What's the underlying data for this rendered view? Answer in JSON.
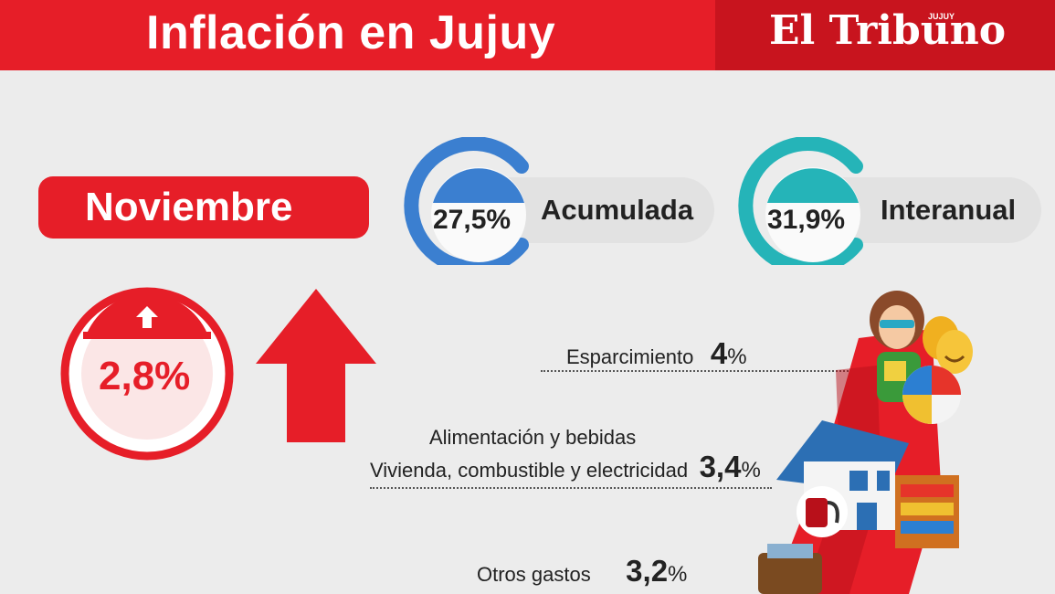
{
  "header": {
    "title": "Inflación en Jujuy",
    "brand": "El Tribuno",
    "brand_sub": "JUJUY"
  },
  "month": "Noviembre",
  "accumulated": {
    "value": "27,5%",
    "label": "Acumulada",
    "color": "#3b7fd0"
  },
  "interannual": {
    "value": "31,9%",
    "label": "Interanual",
    "color": "#25b4b8"
  },
  "monthly": {
    "value": "2,8%",
    "color": "#e61e28"
  },
  "categories": [
    {
      "name": "Esparcimiento",
      "value": "4",
      "unit": "%"
    },
    {
      "name": "Alimentación y bebidas",
      "name2": "Vivienda, combustible y electricidad",
      "value": "3,4",
      "unit": "%"
    },
    {
      "name": "Otros gastos",
      "value": "3,2",
      "unit": "%"
    }
  ],
  "icons": [
    "up-arrow-icon",
    "person-3d-glasses-icon",
    "theater-masks-icon",
    "beach-ball-icon",
    "house-icon",
    "gas-pump-icon",
    "store-shelf-icon",
    "wallet-icon"
  ]
}
